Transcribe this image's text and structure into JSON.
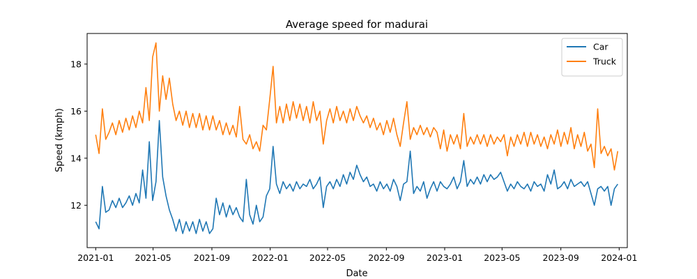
{
  "chart_data": {
    "type": "line",
    "title": "Average speed for madurai",
    "xlabel": "Date",
    "ylabel": "Speed (kmph)",
    "xlim": [
      "2020-12-14",
      "2024-01-18"
    ],
    "ylim": [
      10.2,
      19.3
    ],
    "x_ticks": [
      "2021-01",
      "2021-05",
      "2021-09",
      "2022-01",
      "2022-05",
      "2022-09",
      "2023-01",
      "2023-05",
      "2023-09",
      "2024-01"
    ],
    "y_ticks": [
      12,
      14,
      16,
      18
    ],
    "legend_position": "top-right",
    "grid": false,
    "series": [
      {
        "name": "Car",
        "color": "#1f77b4",
        "x": [
          "2021-01-01",
          "2021-01-08",
          "2021-01-15",
          "2021-01-22",
          "2021-01-29",
          "2021-02-05",
          "2021-02-12",
          "2021-02-19",
          "2021-02-26",
          "2021-03-05",
          "2021-03-12",
          "2021-03-19",
          "2021-03-26",
          "2021-04-02",
          "2021-04-09",
          "2021-04-16",
          "2021-04-23",
          "2021-04-30",
          "2021-05-07",
          "2021-05-14",
          "2021-05-21",
          "2021-05-28",
          "2021-06-04",
          "2021-06-11",
          "2021-06-18",
          "2021-06-25",
          "2021-07-02",
          "2021-07-09",
          "2021-07-16",
          "2021-07-23",
          "2021-07-30",
          "2021-08-06",
          "2021-08-13",
          "2021-08-20",
          "2021-08-27",
          "2021-09-03",
          "2021-09-10",
          "2021-09-17",
          "2021-09-24",
          "2021-10-01",
          "2021-10-08",
          "2021-10-15",
          "2021-10-22",
          "2021-10-29",
          "2021-11-05",
          "2021-11-12",
          "2021-11-19",
          "2021-11-26",
          "2021-12-03",
          "2021-12-10",
          "2021-12-17",
          "2021-12-24",
          "2021-12-31",
          "2022-01-07",
          "2022-01-14",
          "2022-01-21",
          "2022-01-28",
          "2022-02-04",
          "2022-02-11",
          "2022-02-18",
          "2022-02-25",
          "2022-03-04",
          "2022-03-11",
          "2022-03-18",
          "2022-03-25",
          "2022-04-01",
          "2022-04-08",
          "2022-04-15",
          "2022-04-22",
          "2022-04-29",
          "2022-05-06",
          "2022-05-13",
          "2022-05-20",
          "2022-05-27",
          "2022-06-03",
          "2022-06-10",
          "2022-06-17",
          "2022-06-24",
          "2022-07-01",
          "2022-07-08",
          "2022-07-15",
          "2022-07-22",
          "2022-07-29",
          "2022-08-05",
          "2022-08-12",
          "2022-08-19",
          "2022-08-26",
          "2022-09-02",
          "2022-09-09",
          "2022-09-16",
          "2022-09-23",
          "2022-09-30",
          "2022-10-07",
          "2022-10-14",
          "2022-10-21",
          "2022-10-28",
          "2022-11-04",
          "2022-11-11",
          "2022-11-18",
          "2022-11-25",
          "2022-12-02",
          "2022-12-09",
          "2022-12-16",
          "2022-12-23",
          "2022-12-30",
          "2023-01-06",
          "2023-01-13",
          "2023-01-20",
          "2023-01-27",
          "2023-02-03",
          "2023-02-10",
          "2023-02-17",
          "2023-02-24",
          "2023-03-03",
          "2023-03-10",
          "2023-03-17",
          "2023-03-24",
          "2023-03-31",
          "2023-04-07",
          "2023-04-14",
          "2023-04-21",
          "2023-04-28",
          "2023-05-05",
          "2023-05-12",
          "2023-05-19",
          "2023-05-26",
          "2023-06-02",
          "2023-06-09",
          "2023-06-16",
          "2023-06-23",
          "2023-06-30",
          "2023-07-07",
          "2023-07-14",
          "2023-07-21",
          "2023-07-28",
          "2023-08-04",
          "2023-08-11",
          "2023-08-18",
          "2023-08-25",
          "2023-09-01",
          "2023-09-08",
          "2023-09-15",
          "2023-09-22",
          "2023-09-29",
          "2023-10-06",
          "2023-10-13",
          "2023-10-20",
          "2023-10-27",
          "2023-11-03",
          "2023-11-10",
          "2023-11-17",
          "2023-11-24",
          "2023-12-01",
          "2023-12-08",
          "2023-12-15",
          "2023-12-22",
          "2023-12-29"
        ],
        "values": [
          11.3,
          11.0,
          12.8,
          11.7,
          11.8,
          12.2,
          11.9,
          12.3,
          11.9,
          12.1,
          12.4,
          12.0,
          12.5,
          12.1,
          13.5,
          12.3,
          14.7,
          12.2,
          13.0,
          15.6,
          13.2,
          12.4,
          11.8,
          11.4,
          10.9,
          11.4,
          10.8,
          11.3,
          10.9,
          11.3,
          10.8,
          11.4,
          10.9,
          11.3,
          10.8,
          11.0,
          12.3,
          11.6,
          12.1,
          11.5,
          12.0,
          11.6,
          11.9,
          11.5,
          11.3,
          13.1,
          11.6,
          11.2,
          12.0,
          11.3,
          11.5,
          12.4,
          12.7,
          14.5,
          12.9,
          12.5,
          13.0,
          12.7,
          12.9,
          12.6,
          13.0,
          12.7,
          12.9,
          12.8,
          13.1,
          12.7,
          12.9,
          13.2,
          11.9,
          12.8,
          13.0,
          12.7,
          13.1,
          12.8,
          13.3,
          12.9,
          13.4,
          13.1,
          13.7,
          13.3,
          13.0,
          13.2,
          12.8,
          12.9,
          12.6,
          13.0,
          12.7,
          12.9,
          12.6,
          13.1,
          12.8,
          12.2,
          12.9,
          13.0,
          14.3,
          12.5,
          12.8,
          12.6,
          13.0,
          12.3,
          12.7,
          13.0,
          12.6,
          13.0,
          12.8,
          12.7,
          12.9,
          13.2,
          12.7,
          13.0,
          13.9,
          12.8,
          13.1,
          12.9,
          13.2,
          12.9,
          13.3,
          13.0,
          13.3,
          13.1,
          13.2,
          13.4,
          13.0,
          12.6,
          12.9,
          12.7,
          13.0,
          12.8,
          12.7,
          12.9,
          12.6,
          13.0,
          12.8,
          12.9,
          12.6,
          13.3,
          12.9,
          13.5,
          12.7,
          12.8,
          13.0,
          12.7,
          13.1,
          12.8,
          12.9,
          13.0,
          12.8,
          13.0,
          12.5,
          12.0,
          12.7,
          12.8,
          12.6,
          12.8,
          12.0,
          12.7,
          12.9
        ]
      },
      {
        "name": "Truck",
        "color": "#ff7f0e",
        "x": [
          "2021-01-01",
          "2021-01-08",
          "2021-01-15",
          "2021-01-22",
          "2021-01-29",
          "2021-02-05",
          "2021-02-12",
          "2021-02-19",
          "2021-02-26",
          "2021-03-05",
          "2021-03-12",
          "2021-03-19",
          "2021-03-26",
          "2021-04-02",
          "2021-04-09",
          "2021-04-16",
          "2021-04-23",
          "2021-04-30",
          "2021-05-07",
          "2021-05-14",
          "2021-05-21",
          "2021-05-28",
          "2021-06-04",
          "2021-06-11",
          "2021-06-18",
          "2021-06-25",
          "2021-07-02",
          "2021-07-09",
          "2021-07-16",
          "2021-07-23",
          "2021-07-30",
          "2021-08-06",
          "2021-08-13",
          "2021-08-20",
          "2021-08-27",
          "2021-09-03",
          "2021-09-10",
          "2021-09-17",
          "2021-09-24",
          "2021-10-01",
          "2021-10-08",
          "2021-10-15",
          "2021-10-22",
          "2021-10-29",
          "2021-11-05",
          "2021-11-12",
          "2021-11-19",
          "2021-11-26",
          "2021-12-03",
          "2021-12-10",
          "2021-12-17",
          "2021-12-24",
          "2021-12-31",
          "2022-01-07",
          "2022-01-14",
          "2022-01-21",
          "2022-01-28",
          "2022-02-04",
          "2022-02-11",
          "2022-02-18",
          "2022-02-25",
          "2022-03-04",
          "2022-03-11",
          "2022-03-18",
          "2022-03-25",
          "2022-04-01",
          "2022-04-08",
          "2022-04-15",
          "2022-04-22",
          "2022-04-29",
          "2022-05-06",
          "2022-05-13",
          "2022-05-20",
          "2022-05-27",
          "2022-06-03",
          "2022-06-10",
          "2022-06-17",
          "2022-06-24",
          "2022-07-01",
          "2022-07-08",
          "2022-07-15",
          "2022-07-22",
          "2022-07-29",
          "2022-08-05",
          "2022-08-12",
          "2022-08-19",
          "2022-08-26",
          "2022-09-02",
          "2022-09-09",
          "2022-09-16",
          "2022-09-23",
          "2022-09-30",
          "2022-10-07",
          "2022-10-14",
          "2022-10-21",
          "2022-10-28",
          "2022-11-04",
          "2022-11-11",
          "2022-11-18",
          "2022-11-25",
          "2022-12-02",
          "2022-12-09",
          "2022-12-16",
          "2022-12-23",
          "2022-12-30",
          "2023-01-06",
          "2023-01-13",
          "2023-01-20",
          "2023-01-27",
          "2023-02-03",
          "2023-02-10",
          "2023-02-17",
          "2023-02-24",
          "2023-03-03",
          "2023-03-10",
          "2023-03-17",
          "2023-03-24",
          "2023-03-31",
          "2023-04-07",
          "2023-04-14",
          "2023-04-21",
          "2023-04-28",
          "2023-05-05",
          "2023-05-12",
          "2023-05-19",
          "2023-05-26",
          "2023-06-02",
          "2023-06-09",
          "2023-06-16",
          "2023-06-23",
          "2023-06-30",
          "2023-07-07",
          "2023-07-14",
          "2023-07-21",
          "2023-07-28",
          "2023-08-04",
          "2023-08-11",
          "2023-08-18",
          "2023-08-25",
          "2023-09-01",
          "2023-09-08",
          "2023-09-15",
          "2023-09-22",
          "2023-09-29",
          "2023-10-06",
          "2023-10-13",
          "2023-10-20",
          "2023-10-27",
          "2023-11-03",
          "2023-11-10",
          "2023-11-17",
          "2023-11-24",
          "2023-12-01",
          "2023-12-08",
          "2023-12-15",
          "2023-12-22",
          "2023-12-29"
        ],
        "values": [
          15.0,
          14.2,
          16.1,
          14.8,
          15.1,
          15.5,
          15.0,
          15.6,
          15.1,
          15.7,
          15.2,
          15.8,
          15.3,
          16.0,
          15.5,
          17.0,
          15.6,
          18.3,
          18.9,
          16.0,
          17.5,
          16.5,
          17.4,
          16.3,
          15.6,
          16.0,
          15.4,
          16.0,
          15.3,
          15.9,
          15.3,
          15.9,
          15.2,
          15.8,
          15.2,
          15.8,
          15.2,
          15.6,
          15.0,
          15.5,
          15.0,
          15.4,
          14.9,
          16.2,
          14.8,
          14.6,
          15.0,
          14.4,
          14.7,
          14.3,
          15.4,
          15.2,
          16.5,
          17.9,
          15.5,
          16.2,
          15.5,
          16.3,
          15.6,
          16.4,
          15.7,
          16.3,
          15.6,
          16.2,
          15.5,
          16.4,
          15.6,
          16.0,
          14.6,
          15.6,
          16.1,
          15.5,
          16.2,
          15.6,
          16.0,
          15.5,
          16.1,
          15.6,
          16.2,
          15.8,
          15.5,
          15.8,
          15.3,
          15.7,
          15.2,
          15.5,
          15.0,
          15.6,
          15.1,
          15.7,
          15.0,
          14.5,
          15.5,
          16.4,
          14.8,
          15.3,
          15.0,
          15.4,
          15.0,
          15.3,
          14.9,
          15.3,
          15.1,
          14.4,
          15.2,
          14.3,
          15.0,
          14.6,
          15.0,
          14.4,
          15.9,
          14.5,
          14.9,
          14.6,
          15.0,
          14.6,
          15.0,
          14.5,
          15.0,
          14.6,
          14.9,
          14.7,
          15.0,
          14.1,
          14.9,
          14.5,
          15.0,
          14.6,
          15.1,
          14.5,
          15.1,
          14.6,
          15.0,
          14.5,
          14.9,
          14.4,
          15.0,
          14.6,
          15.2,
          14.5,
          15.1,
          14.6,
          15.3,
          14.4,
          15.0,
          14.5,
          15.1,
          14.3,
          14.6,
          13.6,
          16.1,
          14.2,
          14.5,
          14.1,
          14.4,
          13.5,
          14.3
        ]
      }
    ]
  }
}
